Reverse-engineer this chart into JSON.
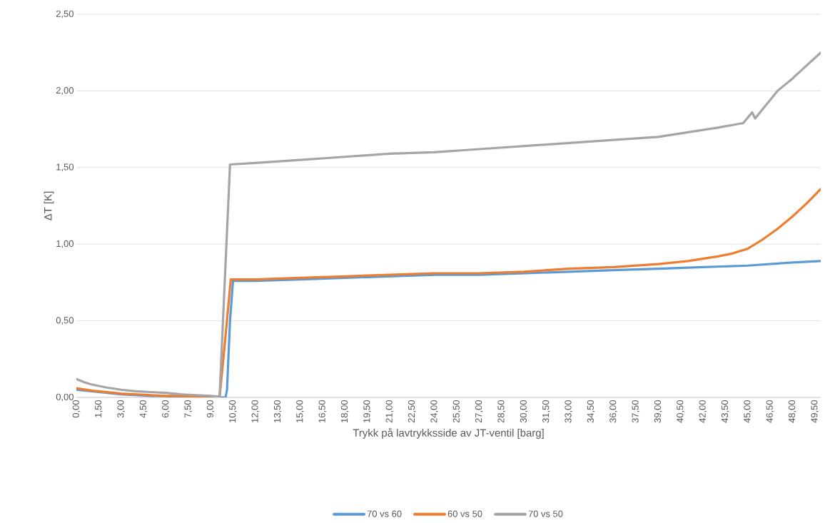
{
  "chart_data": {
    "type": "line",
    "xlabel": "Trykk på lavtrykksside av JT-ventil [barg]",
    "ylabel": "ΔT [K]",
    "xlim": [
      0,
      49.9
    ],
    "ylim": [
      0,
      2.5
    ],
    "xticks": [
      {
        "value": 0,
        "label": "0,00"
      },
      {
        "value": 1.5,
        "label": "1,50"
      },
      {
        "value": 3,
        "label": "3,00"
      },
      {
        "value": 4.5,
        "label": "4,50"
      },
      {
        "value": 6,
        "label": "6,00"
      },
      {
        "value": 7.5,
        "label": "7,50"
      },
      {
        "value": 9,
        "label": "9,00"
      },
      {
        "value": 10.5,
        "label": "10,50"
      },
      {
        "value": 12,
        "label": "12,00"
      },
      {
        "value": 13.5,
        "label": "13,50"
      },
      {
        "value": 15,
        "label": "15,00"
      },
      {
        "value": 16.5,
        "label": "16,50"
      },
      {
        "value": 18,
        "label": "18,00"
      },
      {
        "value": 19.5,
        "label": "19,50"
      },
      {
        "value": 21,
        "label": "21,00"
      },
      {
        "value": 22.5,
        "label": "22,50"
      },
      {
        "value": 24,
        "label": "24,00"
      },
      {
        "value": 25.5,
        "label": "25,50"
      },
      {
        "value": 27,
        "label": "27,00"
      },
      {
        "value": 28.5,
        "label": "28,50"
      },
      {
        "value": 30,
        "label": "30,00"
      },
      {
        "value": 31.5,
        "label": "31,50"
      },
      {
        "value": 33,
        "label": "33,00"
      },
      {
        "value": 34.5,
        "label": "34,50"
      },
      {
        "value": 36,
        "label": "36,00"
      },
      {
        "value": 37.5,
        "label": "37,50"
      },
      {
        "value": 39,
        "label": "39,00"
      },
      {
        "value": 40.5,
        "label": "40,50"
      },
      {
        "value": 42,
        "label": "42,00"
      },
      {
        "value": 43.5,
        "label": "43,50"
      },
      {
        "value": 45,
        "label": "45,00"
      },
      {
        "value": 46.5,
        "label": "46,50"
      },
      {
        "value": 48,
        "label": "48,00"
      },
      {
        "value": 49.5,
        "label": "49,50"
      }
    ],
    "yticks": [
      {
        "value": 0,
        "label": "0,00"
      },
      {
        "value": 0.5,
        "label": "0,50"
      },
      {
        "value": 1,
        "label": "1,00"
      },
      {
        "value": 1.5,
        "label": "1,50"
      },
      {
        "value": 2,
        "label": "2,00"
      },
      {
        "value": 2.5,
        "label": "2,50"
      }
    ],
    "grid": "y",
    "legend": "bottom",
    "marker": "none",
    "line_style": "solid",
    "series": [
      {
        "name": "70 vs 60",
        "color": "#5b9bd5",
        "x": [
          0,
          1,
          2,
          3,
          4,
          5,
          6,
          7,
          8,
          9,
          10.0,
          10.1,
          10.3,
          10.5,
          12,
          15,
          18,
          21,
          24,
          27,
          30,
          33,
          36,
          39,
          42,
          45,
          48,
          49.9
        ],
        "values": [
          0.05,
          0.04,
          0.03,
          0.02,
          0.015,
          0.01,
          0.008,
          0.005,
          0.003,
          0.0,
          0.0,
          0.05,
          0.5,
          0.76,
          0.76,
          0.77,
          0.78,
          0.79,
          0.8,
          0.8,
          0.81,
          0.82,
          0.83,
          0.84,
          0.85,
          0.86,
          0.88,
          0.89
        ]
      },
      {
        "name": "60 vs 50",
        "color": "#ed7d31",
        "x": [
          0,
          1,
          2,
          3,
          4,
          5,
          6,
          7,
          8,
          9,
          9.6,
          10.0,
          10.35,
          12,
          15,
          18,
          21,
          24,
          27,
          30,
          33,
          36,
          39,
          41,
          43,
          44,
          45,
          46,
          47,
          48,
          49,
          49.9
        ],
        "values": [
          0.06,
          0.045,
          0.035,
          0.025,
          0.02,
          0.015,
          0.01,
          0.01,
          0.005,
          0.003,
          0.0,
          0.4,
          0.77,
          0.77,
          0.78,
          0.79,
          0.8,
          0.81,
          0.81,
          0.82,
          0.84,
          0.85,
          0.87,
          0.89,
          0.92,
          0.94,
          0.97,
          1.03,
          1.1,
          1.18,
          1.27,
          1.36
        ]
      },
      {
        "name": "70 vs 50",
        "color": "#a5a5a5",
        "x": [
          0,
          0.5,
          1,
          2,
          3,
          4,
          5,
          6,
          7,
          8,
          9,
          9.6,
          10.3,
          12,
          15,
          18,
          21,
          24,
          27,
          30,
          33,
          36,
          39,
          41,
          43,
          44.7,
          45.3,
          45.5,
          47,
          48,
          49,
          49.9
        ],
        "values": [
          0.12,
          0.1,
          0.085,
          0.065,
          0.05,
          0.04,
          0.035,
          0.03,
          0.02,
          0.015,
          0.01,
          0.005,
          1.52,
          1.53,
          1.55,
          1.57,
          1.59,
          1.6,
          1.62,
          1.64,
          1.66,
          1.68,
          1.7,
          1.73,
          1.76,
          1.79,
          1.86,
          1.82,
          2.0,
          2.08,
          2.17,
          2.25
        ]
      }
    ]
  }
}
